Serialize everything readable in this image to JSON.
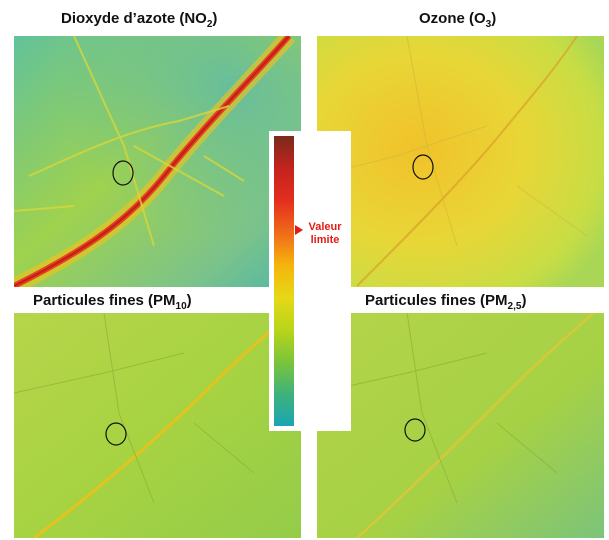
{
  "panels": {
    "no2": {
      "title": "Dioxyde d’azote (NO",
      "sub": "2",
      "close": ")"
    },
    "o3": {
      "title": "Ozone (O",
      "sub": "3",
      "close": ")"
    },
    "pm10": {
      "title": "Particules fines (PM",
      "sub": "10",
      "close": ")"
    },
    "pm25": {
      "title": "Particules fines (PM",
      "sub": "2,5",
      "close": ")"
    }
  },
  "legend": {
    "marker_label_line1": "Valeur",
    "marker_label_line2": "limite",
    "scale_colors": [
      "#7a2a1c",
      "#c4231e",
      "#e32e1e",
      "#f06a1a",
      "#f5b40c",
      "#e6d817",
      "#b9d51a",
      "#7cc43a",
      "#3fb27a",
      "#1aa5b6"
    ],
    "limit_fraction": 0.69
  }
}
